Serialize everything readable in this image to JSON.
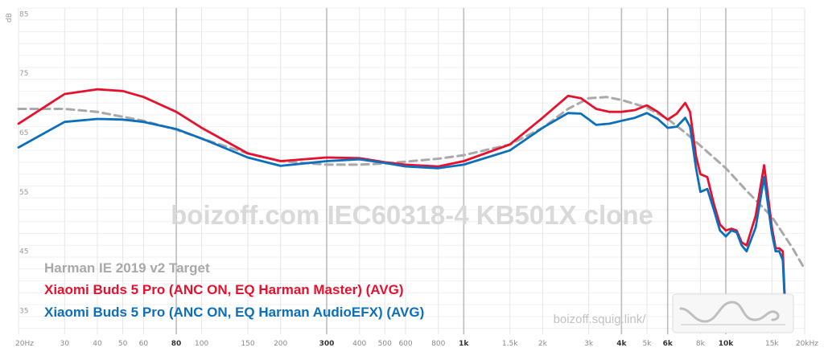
{
  "chart_data": {
    "type": "line",
    "xscale": "log",
    "xlim": [
      20,
      20000
    ],
    "ylim": [
      31,
      86
    ],
    "ylabel": "dB",
    "yticks": [
      35,
      45,
      55,
      65,
      75,
      85
    ],
    "xticks": [
      {
        "v": 20,
        "label": "20Hz",
        "major": false
      },
      {
        "v": 30,
        "label": "30",
        "major": false
      },
      {
        "v": 40,
        "label": "40",
        "major": false
      },
      {
        "v": 50,
        "label": "50",
        "major": false
      },
      {
        "v": 60,
        "label": "60",
        "major": false
      },
      {
        "v": 80,
        "label": "80",
        "major": true
      },
      {
        "v": 100,
        "label": "100",
        "major": false
      },
      {
        "v": 150,
        "label": "150",
        "major": false
      },
      {
        "v": 200,
        "label": "200",
        "major": false
      },
      {
        "v": 300,
        "label": "300",
        "major": true
      },
      {
        "v": 400,
        "label": "400",
        "major": false
      },
      {
        "v": 500,
        "label": "500",
        "major": false
      },
      {
        "v": 600,
        "label": "600",
        "major": false
      },
      {
        "v": 800,
        "label": "800",
        "major": false
      },
      {
        "v": 1000,
        "label": "1k",
        "major": true
      },
      {
        "v": 1500,
        "label": "1.5k",
        "major": false
      },
      {
        "v": 2000,
        "label": "2k",
        "major": false
      },
      {
        "v": 3000,
        "label": "3k",
        "major": false
      },
      {
        "v": 4000,
        "label": "4k",
        "major": true
      },
      {
        "v": 5000,
        "label": "5k",
        "major": false
      },
      {
        "v": 6000,
        "label": "6k",
        "major": true
      },
      {
        "v": 8000,
        "label": "8k",
        "major": false
      },
      {
        "v": 10000,
        "label": "10k",
        "major": true
      },
      {
        "v": 15000,
        "label": "15k",
        "major": false
      },
      {
        "v": 20000,
        "label": "20kHz",
        "major": false
      }
    ],
    "watermark": "boizoff.com IEC60318-4 KB501X clone",
    "credit": "boizoff.squig.link/",
    "legend_position": "bottom-left",
    "series": [
      {
        "name": "Harman IE 2019 v2 Target",
        "color": "#a9a9a9",
        "dashed": true,
        "x": [
          20,
          30,
          40,
          60,
          80,
          100,
          150,
          200,
          300,
          400,
          500,
          600,
          800,
          1000,
          1500,
          2000,
          2500,
          3000,
          3500,
          4000,
          5000,
          6000,
          7000,
          8000,
          10000,
          12000,
          15000,
          18000,
          20000
        ],
        "y": [
          69,
          69,
          68.5,
          67,
          65.5,
          64,
          61.5,
          60.2,
          59.6,
          59.6,
          59.8,
          60.1,
          60.6,
          61.2,
          63,
          65.8,
          69,
          70.8,
          71,
          70.5,
          69.2,
          67.3,
          65,
          62.8,
          59,
          55.2,
          50.8,
          45.5,
          42
        ]
      },
      {
        "name": "Xiaomi Buds 5 Pro (ANC ON, EQ Harman Master) (AVG)",
        "color": "#e8112d",
        "dashed": false,
        "x": [
          20,
          30,
          40,
          50,
          60,
          80,
          100,
          150,
          200,
          300,
          400,
          500,
          600,
          800,
          1000,
          1500,
          2000,
          2500,
          2800,
          3200,
          3600,
          4000,
          4500,
          5000,
          5500,
          6000,
          6500,
          7000,
          7300,
          7700,
          8000,
          8500,
          9000,
          9500,
          10000,
          10500,
          11000,
          11500,
          12000,
          13000,
          14000,
          15000,
          15500,
          16000,
          16500,
          17000
        ],
        "y": [
          66.5,
          71.5,
          72.3,
          72,
          71,
          68.5,
          65.8,
          61.5,
          60.2,
          60.8,
          60.7,
          60,
          59.6,
          59.3,
          60.2,
          63,
          67.5,
          71.2,
          70.8,
          69,
          68.5,
          68.5,
          68.8,
          69.6,
          68.5,
          67.2,
          68.2,
          70,
          68.5,
          61,
          58,
          57.5,
          53,
          49.5,
          48.5,
          48.8,
          48.5,
          46.5,
          46,
          51,
          59.5,
          49,
          45.5,
          45.5,
          45,
          31.5
        ]
      },
      {
        "name": "Xiaomi Buds 5 Pro (ANC ON, EQ Harman AudioEFX) (AVG)",
        "color": "#0b6fbe",
        "dashed": false,
        "x": [
          20,
          30,
          40,
          50,
          60,
          80,
          100,
          150,
          200,
          300,
          400,
          500,
          600,
          800,
          1000,
          1500,
          2000,
          2500,
          2800,
          3200,
          3600,
          4000,
          4500,
          5000,
          5500,
          6000,
          6500,
          7000,
          7300,
          7700,
          8000,
          8500,
          9000,
          9500,
          10000,
          10500,
          11000,
          11500,
          12000,
          13000,
          14000,
          15000,
          15500,
          16000,
          16500,
          17000
        ],
        "y": [
          62.5,
          66.8,
          67.3,
          67.2,
          66.8,
          65.6,
          64,
          60.8,
          59.4,
          60.2,
          60.5,
          59.9,
          59.3,
          59,
          59.6,
          62,
          65.8,
          68.3,
          68.2,
          66.3,
          66.5,
          67,
          67.5,
          68.3,
          67.3,
          65.8,
          66,
          67.5,
          66,
          59,
          55,
          55.5,
          52,
          48.5,
          47.5,
          48.5,
          48.2,
          46,
          45,
          49,
          57.5,
          48,
          45,
          45,
          43.5,
          31.5
        ]
      }
    ]
  }
}
